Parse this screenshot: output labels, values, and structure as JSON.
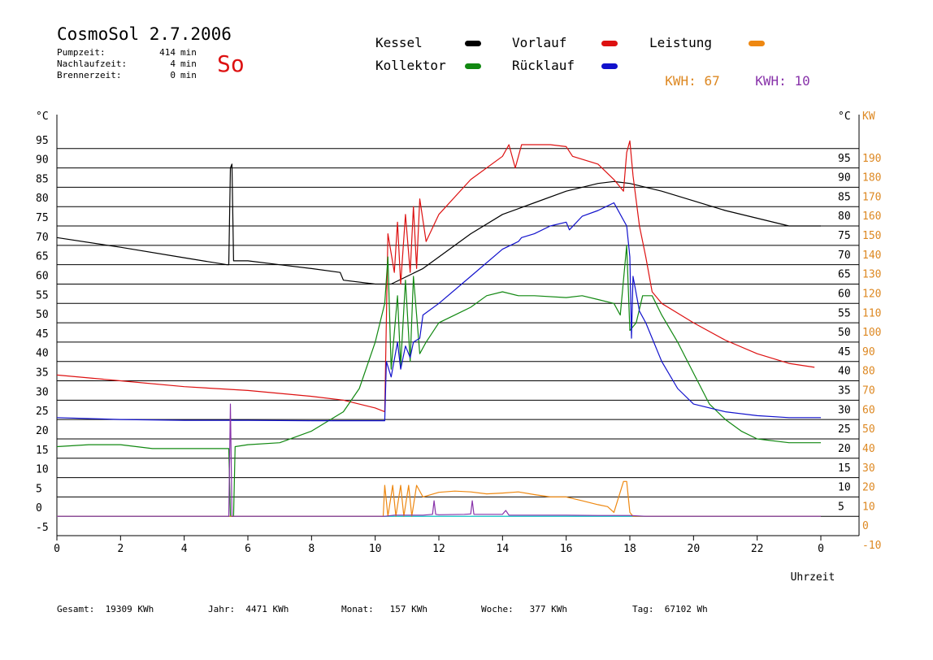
{
  "header": {
    "title": "CosmoSol 2.7.2006",
    "day": "So",
    "stats": [
      {
        "label": "Pumpzeit:",
        "value": "414",
        "unit": "min"
      },
      {
        "label": "Nachlaufzeit:",
        "value": "4",
        "unit": "min"
      },
      {
        "label": "Brennerzeit:",
        "value": "0",
        "unit": "min"
      }
    ]
  },
  "legend": {
    "kessel": {
      "label": "Kessel",
      "color": "#000000"
    },
    "vorlauf": {
      "label": "Vorlauf",
      "color": "#dd1111"
    },
    "leistung": {
      "label": "Leistung",
      "color": "#ee8811"
    },
    "kollektor": {
      "label": "Kollektor",
      "color": "#118811"
    },
    "ruecklauf": {
      "label": "Rücklauf",
      "color": "#1111cc"
    },
    "kwh1": {
      "label": "KWH:",
      "value": "67",
      "color": "#dd8822"
    },
    "kwh2": {
      "label": "KWH:",
      "value": "10",
      "color": "#8833aa"
    }
  },
  "footer": {
    "gesamt": {
      "label": "Gesamt:",
      "value": "19309 KWh"
    },
    "jahr": {
      "label": "Jahr:",
      "value": "4471 KWh"
    },
    "monat": {
      "label": "Monat:",
      "value": "157 KWh"
    },
    "woche": {
      "label": "Woche:",
      "value": "377 KWh"
    },
    "tag": {
      "label": "Tag:",
      "value": "67102 Wh"
    }
  },
  "chart_data": {
    "type": "line",
    "xlabel": "Uhrzeit",
    "ylabel_left": "°C",
    "ylabel_right": "°C",
    "ylabel_kw": "KW",
    "xlim": [
      0,
      24
    ],
    "ylim": [
      -5,
      100
    ],
    "kw_lim": [
      -10,
      200
    ],
    "grid": true,
    "x_ticks": [
      "0",
      "2",
      "4",
      "6",
      "8",
      "10",
      "12",
      "14",
      "16",
      "18",
      "20",
      "22",
      "0"
    ],
    "y_ticks_left": [
      -5,
      0,
      5,
      10,
      15,
      20,
      25,
      30,
      35,
      40,
      45,
      50,
      55,
      60,
      65,
      70,
      75,
      80,
      85,
      90,
      95
    ],
    "y_ticks_right": [
      5,
      10,
      15,
      20,
      25,
      30,
      35,
      40,
      45,
      50,
      55,
      60,
      65,
      70,
      75,
      80,
      85,
      90,
      95
    ],
    "y_ticks_kw": [
      -10,
      0,
      10,
      20,
      30,
      40,
      50,
      60,
      70,
      80,
      90,
      100,
      110,
      120,
      130,
      140,
      150,
      160,
      170,
      180,
      190
    ],
    "baseline": {
      "y": 0,
      "color": "#33cccc"
    },
    "series": [
      {
        "name": "Kessel",
        "color": "#000000",
        "points": [
          [
            0,
            72
          ],
          [
            2,
            69.5
          ],
          [
            4,
            66.8
          ],
          [
            5.35,
            65
          ],
          [
            5.4,
            65
          ],
          [
            5.45,
            90
          ],
          [
            5.5,
            91
          ],
          [
            5.55,
            66
          ],
          [
            6,
            66
          ],
          [
            7,
            65
          ],
          [
            8,
            64
          ],
          [
            8.9,
            63
          ],
          [
            9,
            61
          ],
          [
            10,
            60
          ],
          [
            10.5,
            60
          ],
          [
            11,
            62
          ],
          [
            11.5,
            64
          ],
          [
            12,
            67
          ],
          [
            13,
            73
          ],
          [
            14,
            78
          ],
          [
            15,
            81
          ],
          [
            16,
            84
          ],
          [
            17,
            86
          ],
          [
            17.5,
            86.5
          ],
          [
            18,
            86
          ],
          [
            19,
            84
          ],
          [
            20,
            81.5
          ],
          [
            21,
            79
          ],
          [
            22,
            77
          ],
          [
            23,
            75
          ],
          [
            24,
            75
          ]
        ]
      },
      {
        "name": "Vorlauf",
        "color": "#dd1111",
        "points": [
          [
            0,
            36.5
          ],
          [
            2,
            35
          ],
          [
            4,
            33.5
          ],
          [
            6,
            32.5
          ],
          [
            8,
            31
          ],
          [
            9,
            30
          ],
          [
            10,
            28
          ],
          [
            10.3,
            27
          ],
          [
            10.4,
            73
          ],
          [
            10.6,
            63
          ],
          [
            10.7,
            76
          ],
          [
            10.8,
            60
          ],
          [
            10.95,
            78
          ],
          [
            11.1,
            63
          ],
          [
            11.2,
            80
          ],
          [
            11.3,
            64
          ],
          [
            11.4,
            82
          ],
          [
            11.6,
            71
          ],
          [
            12,
            78
          ],
          [
            13,
            87
          ],
          [
            14,
            93
          ],
          [
            14.2,
            96
          ],
          [
            14.4,
            90
          ],
          [
            14.6,
            96
          ],
          [
            15,
            96
          ],
          [
            15.5,
            96
          ],
          [
            16,
            95.5
          ],
          [
            16.2,
            93
          ],
          [
            17,
            91
          ],
          [
            17.5,
            87
          ],
          [
            17.8,
            84
          ],
          [
            17.9,
            94
          ],
          [
            18,
            97
          ],
          [
            18.1,
            88
          ],
          [
            18.3,
            75
          ],
          [
            18.5,
            67
          ],
          [
            18.7,
            58
          ],
          [
            19,
            55
          ],
          [
            20,
            50
          ],
          [
            21,
            45.5
          ],
          [
            22,
            42
          ],
          [
            23,
            39.5
          ],
          [
            23.8,
            38.5
          ]
        ]
      },
      {
        "name": "Kollektor",
        "color": "#118811",
        "points": [
          [
            0,
            18
          ],
          [
            1,
            18.5
          ],
          [
            2,
            18.5
          ],
          [
            3,
            17.5
          ],
          [
            4,
            17.5
          ],
          [
            5,
            17.5
          ],
          [
            5.4,
            17.5
          ],
          [
            5.45,
            0
          ],
          [
            5.55,
            0
          ],
          [
            5.6,
            18
          ],
          [
            6,
            18.5
          ],
          [
            7,
            19
          ],
          [
            8,
            22
          ],
          [
            9,
            27
          ],
          [
            9.5,
            33
          ],
          [
            10,
            45
          ],
          [
            10.3,
            55
          ],
          [
            10.4,
            67
          ],
          [
            10.5,
            38
          ],
          [
            10.7,
            57
          ],
          [
            10.8,
            39
          ],
          [
            10.95,
            61
          ],
          [
            11.1,
            40
          ],
          [
            11.2,
            62
          ],
          [
            11.4,
            42
          ],
          [
            11.6,
            45
          ],
          [
            12,
            50
          ],
          [
            12.5,
            52
          ],
          [
            13,
            54
          ],
          [
            13.5,
            57
          ],
          [
            14,
            58
          ],
          [
            14.5,
            57
          ],
          [
            15,
            57
          ],
          [
            16,
            56.5
          ],
          [
            16.5,
            57
          ],
          [
            17,
            56
          ],
          [
            17.5,
            55
          ],
          [
            17.7,
            52
          ],
          [
            17.9,
            70
          ],
          [
            18,
            48
          ],
          [
            18.2,
            50
          ],
          [
            18.4,
            57
          ],
          [
            18.7,
            57
          ],
          [
            19,
            52
          ],
          [
            19.5,
            45
          ],
          [
            20,
            37
          ],
          [
            20.5,
            29
          ],
          [
            21,
            25
          ],
          [
            21.5,
            22
          ],
          [
            22,
            20
          ],
          [
            23,
            19
          ],
          [
            24,
            19
          ]
        ]
      },
      {
        "name": "Rücklauf",
        "color": "#1111cc",
        "points": [
          [
            0,
            25.5
          ],
          [
            2,
            25
          ],
          [
            4,
            24.8
          ],
          [
            6,
            24.8
          ],
          [
            8,
            24.7
          ],
          [
            9,
            24.7
          ],
          [
            10,
            24.7
          ],
          [
            10.3,
            24.7
          ],
          [
            10.35,
            40
          ],
          [
            10.5,
            36
          ],
          [
            10.7,
            45
          ],
          [
            10.8,
            38
          ],
          [
            10.95,
            44
          ],
          [
            11.1,
            41
          ],
          [
            11.2,
            45
          ],
          [
            11.4,
            46
          ],
          [
            11.5,
            52
          ],
          [
            12,
            55
          ],
          [
            13,
            62
          ],
          [
            14,
            69
          ],
          [
            14.5,
            71
          ],
          [
            14.6,
            72
          ],
          [
            15,
            73
          ],
          [
            15.5,
            75
          ],
          [
            16,
            76
          ],
          [
            16.1,
            74
          ],
          [
            16.5,
            77.5
          ],
          [
            17,
            79
          ],
          [
            17.5,
            81
          ],
          [
            17.9,
            75
          ],
          [
            18,
            67
          ],
          [
            18.05,
            46
          ],
          [
            18.1,
            62
          ],
          [
            18.3,
            53
          ],
          [
            18.5,
            50
          ],
          [
            19,
            40
          ],
          [
            19.5,
            33
          ],
          [
            20,
            29
          ],
          [
            21,
            27
          ],
          [
            22,
            26
          ],
          [
            23,
            25.5
          ],
          [
            24,
            25.5
          ]
        ]
      },
      {
        "name": "Leistung",
        "color": "#ee8811",
        "points": [
          [
            0,
            0
          ],
          [
            10.25,
            0
          ],
          [
            10.3,
            8
          ],
          [
            10.4,
            0
          ],
          [
            10.55,
            8
          ],
          [
            10.65,
            0
          ],
          [
            10.8,
            8
          ],
          [
            10.9,
            0
          ],
          [
            11.05,
            8
          ],
          [
            11.15,
            0
          ],
          [
            11.3,
            8
          ],
          [
            11.5,
            5
          ],
          [
            12,
            6.2
          ],
          [
            12.5,
            6.5
          ],
          [
            13,
            6.3
          ],
          [
            13.5,
            5.8
          ],
          [
            14,
            6
          ],
          [
            14.5,
            6.3
          ],
          [
            15,
            5.6
          ],
          [
            15.5,
            5
          ],
          [
            16,
            5
          ],
          [
            16.5,
            4
          ],
          [
            17,
            3
          ],
          [
            17.3,
            2.5
          ],
          [
            17.5,
            1
          ],
          [
            17.8,
            9
          ],
          [
            17.9,
            9
          ],
          [
            18,
            1
          ],
          [
            18.1,
            0
          ],
          [
            24,
            0
          ]
        ]
      },
      {
        "name": "KWH",
        "color": "#8833aa",
        "points": [
          [
            0,
            0
          ],
          [
            5.4,
            0
          ],
          [
            5.45,
            29
          ],
          [
            5.5,
            0
          ],
          [
            10.3,
            0
          ],
          [
            10.6,
            0.3
          ],
          [
            11,
            0.3
          ],
          [
            11.5,
            0.3
          ],
          [
            11.8,
            0.5
          ],
          [
            11.85,
            4
          ],
          [
            11.9,
            0.5
          ],
          [
            12,
            0.4
          ],
          [
            12.8,
            0.5
          ],
          [
            13,
            0.6
          ],
          [
            13.05,
            4
          ],
          [
            13.1,
            0.5
          ],
          [
            14,
            0.5
          ],
          [
            14.1,
            1.5
          ],
          [
            14.2,
            0.3
          ],
          [
            15,
            0.3
          ],
          [
            16,
            0.3
          ],
          [
            17,
            0.2
          ],
          [
            18,
            0.2
          ],
          [
            18.5,
            0
          ],
          [
            24,
            0
          ]
        ]
      }
    ]
  }
}
